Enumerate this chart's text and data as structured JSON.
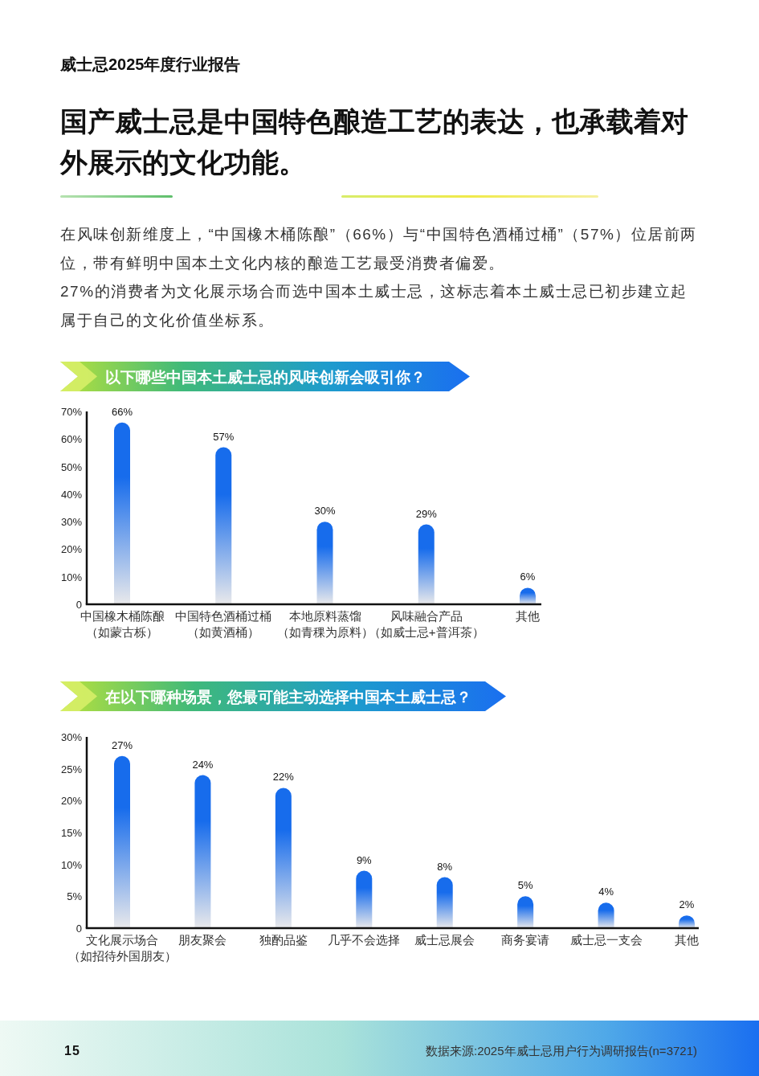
{
  "chart_data": [
    {
      "type": "other",
      "subtitle": "威士忌2025年度行业报告",
      "title": "国产威士忌是中国特色酿造工艺的表达，也承载着对外展示的文化功能。",
      "annotations": [
        "在风味创新维度上，“中国橡木桶陈酿”（66%）与“中国特色酒桶过桶”（57%）位居前两位，带有鲜明中国本土文化内核的酿造工艺最受消费者偏爱。",
        "27%的消费者为文化展示场合而选中国本土威士忌，这标志着本土威士忌已初步建立起属于自己的文化价值坐标系。"
      ]
    },
    {
      "type": "bar",
      "title": "以下哪些中国本土威士忌的风味创新会吸引你？",
      "categories": [
        "中国橡木桶陈酿（如蒙古栎）",
        "中国特色酒桶过桶（如黄酒桶）",
        "本地原料蒸馏（如青稞为原料）",
        "风味融合产品（如威士忌+普洱茶）",
        "其他"
      ],
      "values": [
        66,
        57,
        30,
        29,
        6
      ],
      "value_labels": [
        "66%",
        "57%",
        "30%",
        "29%",
        "6%"
      ],
      "color": "#176cec",
      "ylim": [
        0,
        70
      ],
      "yticks": [
        0,
        {
          "value": 10,
          "label": "10%"
        },
        {
          "value": 20,
          "label": "20%"
        },
        {
          "value": 30,
          "label": "30%"
        },
        {
          "value": 40,
          "label": "40%"
        },
        {
          "value": 50,
          "label": "50%"
        },
        {
          "value": 60,
          "label": "60%"
        },
        {
          "value": 70,
          "label": "70%"
        }
      ]
    },
    {
      "type": "bar",
      "title": "在以下哪种场景，您最可能主动选择中国本土威士忌？",
      "categories": [
        "文化展示场合（如招待外国朋友）",
        "朋友聚会",
        "独酌品鉴",
        "几乎不会选择",
        "威士忌展会",
        "商务宴请",
        "威士忌一支会",
        "其他"
      ],
      "values": [
        27,
        24,
        22,
        9,
        8,
        5,
        4,
        2
      ],
      "value_labels": [
        "27%",
        "24%",
        "22%",
        "9%",
        "8%",
        "5%",
        "4%",
        "2%"
      ],
      "color": "#176cec",
      "ylim": [
        0,
        30
      ],
      "yticks": [
        0,
        {
          "value": 5,
          "label": "5%"
        },
        {
          "value": 10,
          "label": "10%"
        },
        {
          "value": 15,
          "label": "15%"
        },
        {
          "value": 20,
          "label": "20%"
        },
        {
          "value": 25,
          "label": "25%"
        },
        {
          "value": 30,
          "label": "30%"
        }
      ],
      "annotations": [
        "15",
        "数据来源:2025年威士忌用户行为调研报告(n=3721)"
      ]
    }
  ]
}
